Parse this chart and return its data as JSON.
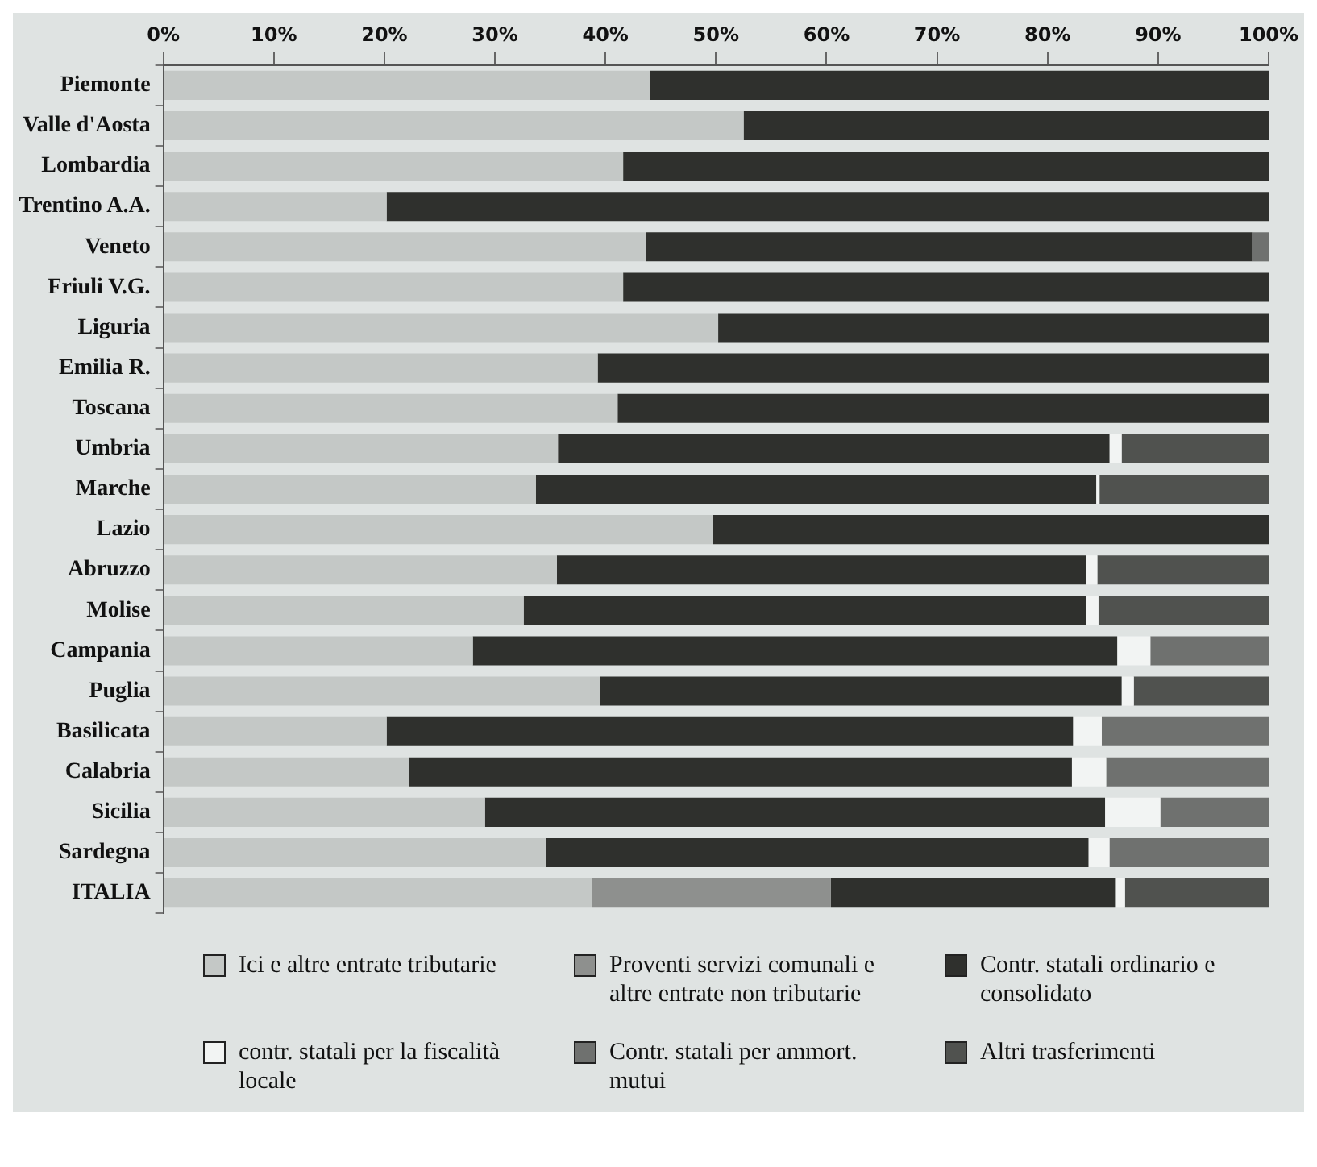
{
  "chart_data": {
    "type": "bar",
    "orientation": "horizontal",
    "stacked": true,
    "categories": [
      "Piemonte",
      "Valle d'Aosta",
      "Lombardia",
      "Trentino A.A.",
      "Veneto",
      "Friuli V.G.",
      "Liguria",
      "Emilia R.",
      "Toscana",
      "Umbria",
      "Marche",
      "Lazio",
      "Abruzzo",
      "Molise",
      "Campania",
      "Puglia",
      "Basilicata",
      "Calabria",
      "Sicilia",
      "Sardegna",
      "ITALIA"
    ],
    "series": [
      {
        "name": "Ici e altre entrate tributarie",
        "color": "#c4c8c6",
        "values": [
          44,
          52.5,
          41.6,
          20.2,
          43.7,
          41.6,
          50.2,
          39.3,
          41.1,
          35.7,
          33.7,
          49.7,
          35.6,
          32.6,
          28,
          39.5,
          20.2,
          22.2,
          29.1,
          34.6,
          38.8
        ]
      },
      {
        "name": "Proventi servizi comunali e altre entrate non tributarie",
        "color": "#8e908e",
        "values": [
          0,
          0,
          0,
          0,
          0,
          0,
          0,
          0,
          0,
          0,
          0,
          0,
          0,
          0,
          0,
          0,
          0,
          0,
          0,
          0,
          21.6
        ]
      },
      {
        "name": "Contr. statali ordinario e consolidato",
        "color": "#2f302d",
        "values": [
          56,
          47.5,
          58.4,
          79.8,
          54.8,
          58.4,
          49.8,
          60.7,
          58.9,
          49.9,
          50.7,
          50.3,
          47.9,
          50.9,
          58.3,
          47.2,
          62.1,
          60,
          56.1,
          49.1,
          25.7
        ]
      },
      {
        "name": "contr. statali per la fiscalità locale",
        "color": "#f2f4f3",
        "values": [
          0,
          0,
          0,
          0,
          0,
          0,
          0,
          0,
          0,
          1.1,
          0.3,
          0,
          1,
          1.1,
          3,
          1.1,
          2.6,
          3.1,
          5,
          1.9,
          0.9
        ]
      },
      {
        "name": "Contr. statali per ammort. mutui",
        "color": "#6f716f",
        "values": [
          0,
          0,
          0,
          0,
          1.5,
          0,
          0,
          0,
          0,
          0,
          0,
          0,
          0,
          0,
          10.7,
          0,
          15.1,
          14.7,
          9.8,
          14.4,
          0
        ]
      },
      {
        "name": "Altri trasferimenti",
        "color": "#50524f",
        "values": [
          0,
          0,
          0,
          0,
          0,
          0,
          0,
          0,
          0,
          13.3,
          15.3,
          0,
          15.5,
          15.4,
          0,
          12.2,
          0,
          0,
          0,
          0,
          13
        ]
      }
    ],
    "xlim": [
      0,
      100
    ],
    "xticks": [
      {
        "value": 0,
        "label": "0%"
      },
      {
        "value": 10,
        "label": "10%"
      },
      {
        "value": 20,
        "label": "20%"
      },
      {
        "value": 30,
        "label": "30%"
      },
      {
        "value": 40,
        "label": "40%"
      },
      {
        "value": 50,
        "label": "50%"
      },
      {
        "value": 60,
        "label": "60%"
      },
      {
        "value": 70,
        "label": "70%"
      },
      {
        "value": 80,
        "label": "80%"
      },
      {
        "value": 90,
        "label": "90%"
      },
      {
        "value": 100,
        "label": "100%"
      }
    ],
    "grid": false,
    "legend": "bottom"
  }
}
